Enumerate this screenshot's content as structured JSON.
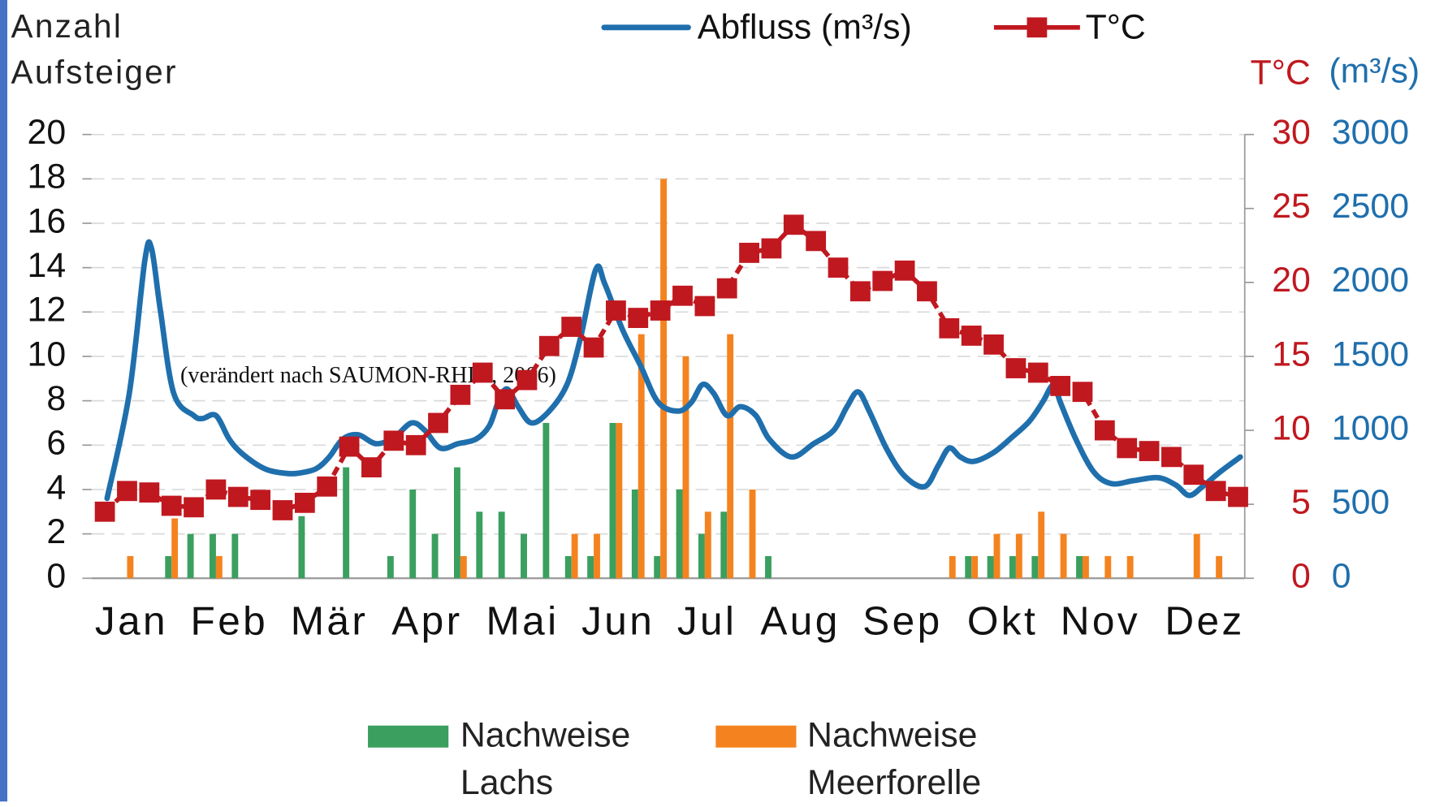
{
  "chart_data": {
    "type": "bar",
    "y_label": "Anzahl Aufsteiger",
    "y2_label": "T°C",
    "y3_label": "(m³/s)",
    "annotation": "(verändert nach SAUMON-RHIN,  2006)",
    "x": [
      1,
      2,
      3,
      4,
      5,
      6,
      7,
      8,
      9,
      10,
      11,
      12,
      13,
      14,
      15,
      16,
      17,
      18,
      19,
      20,
      21,
      22,
      23,
      24,
      25,
      26,
      27,
      28,
      29,
      30,
      31,
      32,
      33,
      34,
      35,
      36,
      37,
      38,
      39,
      40,
      41,
      42,
      43,
      44,
      45,
      46,
      47,
      48,
      49,
      50,
      51,
      52
    ],
    "xlim": [
      0.4,
      52.3
    ],
    "xticks": [
      {
        "value": 2.2,
        "label": "Jan"
      },
      {
        "value": 6.6,
        "label": "Feb"
      },
      {
        "value": 11.1,
        "label": "Mär"
      },
      {
        "value": 15.5,
        "label": "Apr"
      },
      {
        "value": 19.8,
        "label": "Mai"
      },
      {
        "value": 24.1,
        "label": "Jun"
      },
      {
        "value": 28.1,
        "label": "Jul"
      },
      {
        "value": 32.3,
        "label": "Aug"
      },
      {
        "value": 36.9,
        "label": "Sep"
      },
      {
        "value": 41.4,
        "label": "Okt"
      },
      {
        "value": 45.8,
        "label": "Nov"
      },
      {
        "value": 50.5,
        "label": "Dez"
      }
    ],
    "ylim": [
      0,
      20
    ],
    "yticks": [
      0,
      2,
      4,
      6,
      8,
      10,
      12,
      14,
      16,
      18,
      20
    ],
    "y2lim": [
      0,
      30
    ],
    "y2ticks": [
      0,
      5,
      10,
      15,
      20,
      25,
      30
    ],
    "y3lim": [
      0,
      3000
    ],
    "y3ticks": [
      0,
      500,
      1000,
      1500,
      2000,
      2500,
      3000
    ],
    "grid": true,
    "series": [
      {
        "name": "Nachweise Lachs",
        "type": "bar",
        "color": "#3a9f5f",
        "values": [
          0,
          0,
          0,
          1,
          2,
          2,
          2,
          0,
          0,
          2.8,
          0,
          5,
          0,
          1,
          4,
          2,
          5,
          3,
          3,
          2,
          7,
          1,
          1,
          7,
          4,
          1,
          4,
          2,
          3,
          0,
          1,
          0,
          0,
          0,
          0,
          0,
          0,
          0,
          0,
          1,
          1,
          1,
          1,
          0,
          1,
          0,
          0,
          0,
          0,
          0,
          0,
          0
        ]
      },
      {
        "name": "Nachweise Meerforelle",
        "type": "bar",
        "color": "#f4831f",
        "values": [
          0,
          1,
          0,
          2.7,
          0,
          1,
          0,
          0,
          0,
          0,
          0,
          0,
          0,
          0,
          0,
          0,
          1,
          0,
          0,
          0,
          0,
          2,
          2,
          7,
          11,
          18,
          10,
          3,
          11,
          4,
          0,
          0,
          0,
          0,
          0,
          0,
          0,
          0,
          1,
          1,
          2,
          2,
          3,
          2,
          1,
          1,
          1,
          0,
          0,
          2,
          1,
          0
        ]
      },
      {
        "name": "Abfluss (m³/s)",
        "type": "line",
        "axis": "y3",
        "color": "#1f6fad",
        "x": [
          1.1,
          2.1,
          2.8,
          3.1,
          3.5,
          4.1,
          5.0,
          5.4,
          6.0,
          6.6,
          7.2,
          8.2,
          9.1,
          9.7,
          10.5,
          11.1,
          11.7,
          12.4,
          13.2,
          14.0,
          14.8,
          15.4,
          16.1,
          16.9,
          17.7,
          18.3,
          18.7,
          19.1,
          19.6,
          20.2,
          21.0,
          21.8,
          22.4,
          23.1,
          23.5,
          24.3,
          25.1,
          25.9,
          26.8,
          27.4,
          27.9,
          28.4,
          29.0,
          29.6,
          30.3,
          30.9,
          31.9,
          32.9,
          33.8,
          34.4,
          34.9,
          35.4,
          36.2,
          37.0,
          37.9,
          38.5,
          39.0,
          39.5,
          40.1,
          41.0,
          41.8,
          42.6,
          43.2,
          43.7,
          44.0,
          44.7,
          45.5,
          46.3,
          47.3,
          48.4,
          49.2,
          49.8,
          50.4,
          51.2,
          52.1
        ],
        "values": [
          540,
          1250,
          2150,
          2230,
          1810,
          1250,
          1100,
          1080,
          1100,
          940,
          840,
          740,
          710,
          710,
          740,
          820,
          940,
          970,
          910,
          950,
          1050,
          1000,
          880,
          910,
          940,
          1030,
          1190,
          1280,
          1160,
          1050,
          1130,
          1310,
          1620,
          2090,
          1990,
          1680,
          1440,
          1190,
          1130,
          1190,
          1310,
          1250,
          1100,
          1160,
          1100,
          940,
          820,
          910,
          1000,
          1160,
          1260,
          1130,
          870,
          690,
          620,
          760,
          880,
          820,
          790,
          850,
          950,
          1060,
          1190,
          1310,
          1190,
          940,
          720,
          640,
          660,
          680,
          630,
          560,
          620,
          720,
          820
        ]
      },
      {
        "name": "T°C",
        "type": "line",
        "axis": "y2",
        "color": "#c0181f",
        "marker": "square",
        "values": [
          4.5,
          5.9,
          5.8,
          4.9,
          4.8,
          6.0,
          5.5,
          5.3,
          4.6,
          5.1,
          6.2,
          8.9,
          7.5,
          9.3,
          9.0,
          10.5,
          12.4,
          13.9,
          12.1,
          13.4,
          15.7,
          17.0,
          15.6,
          18.1,
          17.6,
          18.1,
          19.1,
          18.4,
          19.6,
          22.0,
          22.3,
          23.9,
          22.8,
          21.0,
          19.4,
          20.1,
          20.8,
          19.4,
          16.9,
          16.4,
          15.8,
          14.2,
          13.9,
          13.0,
          12.6,
          10.0,
          8.8,
          8.6,
          8.2,
          7.0,
          5.9,
          5.5
        ]
      }
    ]
  }
}
